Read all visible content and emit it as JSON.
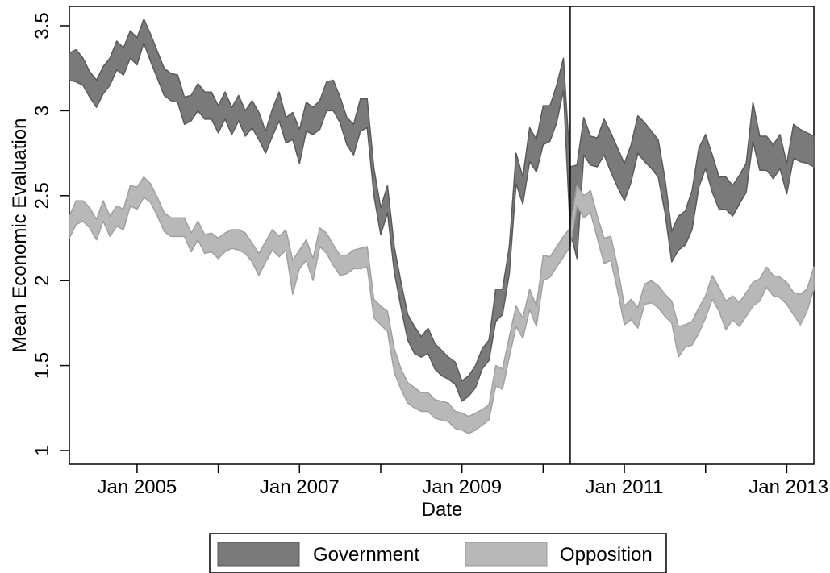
{
  "chart_data": {
    "type": "area",
    "title": "",
    "xlabel": "Date",
    "ylabel": "Mean Economic Evaluation",
    "ylim": [
      1,
      3.5
    ],
    "xlim": [
      "2004-03",
      "2013-05"
    ],
    "x_ticks": [
      "2004-01",
      "2005-01",
      "2006-01",
      "2007-01",
      "2008-01",
      "2009-01",
      "2010-01",
      "2011-01",
      "2012-01",
      "2013-01"
    ],
    "x_tick_labels": [
      "Jan 2005",
      "Jan 2007",
      "Jan 2009",
      "Jan 2011",
      "Jan 2013"
    ],
    "x_tick_label_dates": [
      "2005-01",
      "2007-01",
      "2009-01",
      "2011-01",
      "2013-01"
    ],
    "y_ticks": [
      1,
      1.5,
      2,
      2.5,
      3,
      3.5
    ],
    "y_tick_labels": [
      "1",
      "1.5",
      "2",
      "2.5",
      "3",
      "3.5"
    ],
    "grid": false,
    "vertical_line": "2010-05",
    "legend_position": "bottom",
    "series": [
      {
        "name": "Government",
        "color": "#7a7a7a",
        "x": [
          "2004-03",
          "2004-04",
          "2004-05",
          "2004-06",
          "2004-07",
          "2004-08",
          "2004-09",
          "2004-10",
          "2004-11",
          "2004-12",
          "2005-01",
          "2005-02",
          "2005-03",
          "2005-04",
          "2005-05",
          "2005-06",
          "2005-07",
          "2005-08",
          "2005-09",
          "2005-10",
          "2005-11",
          "2005-12",
          "2006-01",
          "2006-02",
          "2006-03",
          "2006-04",
          "2006-05",
          "2006-06",
          "2006-07",
          "2006-08",
          "2006-09",
          "2006-10",
          "2006-11",
          "2006-12",
          "2007-01",
          "2007-02",
          "2007-03",
          "2007-04",
          "2007-05",
          "2007-06",
          "2007-07",
          "2007-08",
          "2007-09",
          "2007-10",
          "2007-11",
          "2007-12",
          "2008-01",
          "2008-02",
          "2008-03",
          "2008-04",
          "2008-05",
          "2008-06",
          "2008-07",
          "2008-08",
          "2008-09",
          "2008-10",
          "2008-11",
          "2008-12",
          "2009-01",
          "2009-02",
          "2009-03",
          "2009-04",
          "2009-05",
          "2009-06",
          "2009-07",
          "2009-08",
          "2009-09",
          "2009-10",
          "2009-11",
          "2009-12",
          "2010-01",
          "2010-02",
          "2010-03",
          "2010-04",
          "2010-05",
          "2010-06",
          "2010-07",
          "2010-08",
          "2010-09",
          "2010-10",
          "2010-11",
          "2010-12",
          "2011-01",
          "2011-02",
          "2011-03",
          "2011-04",
          "2011-05",
          "2011-06",
          "2011-07",
          "2011-08",
          "2011-09",
          "2011-10",
          "2011-11",
          "2011-12",
          "2012-01",
          "2012-02",
          "2012-03",
          "2012-04",
          "2012-05",
          "2012-06",
          "2012-07",
          "2012-08",
          "2012-09",
          "2012-10",
          "2012-11",
          "2012-12",
          "2013-01",
          "2013-02",
          "2013-03",
          "2013-04",
          "2013-05"
        ],
        "upper": [
          3.34,
          3.36,
          3.31,
          3.23,
          3.18,
          3.26,
          3.31,
          3.41,
          3.37,
          3.47,
          3.43,
          3.54,
          3.45,
          3.35,
          3.25,
          3.22,
          3.21,
          3.08,
          3.09,
          3.16,
          3.11,
          3.11,
          3.03,
          3.11,
          3.02,
          3.09,
          3.0,
          3.06,
          2.99,
          2.88,
          3.01,
          3.11,
          2.96,
          2.99,
          2.89,
          3.05,
          3.02,
          3.06,
          3.17,
          3.18,
          3.08,
          2.96,
          2.92,
          3.07,
          3.07,
          2.66,
          2.43,
          2.56,
          2.2,
          1.99,
          1.8,
          1.73,
          1.67,
          1.72,
          1.63,
          1.59,
          1.55,
          1.52,
          1.41,
          1.44,
          1.5,
          1.6,
          1.65,
          1.95,
          1.95,
          2.2,
          2.75,
          2.61,
          2.9,
          2.83,
          3.03,
          3.03,
          3.15,
          3.31,
          2.67,
          2.68,
          2.96,
          2.85,
          2.84,
          2.95,
          2.87,
          2.78,
          2.69,
          2.8,
          2.97,
          2.93,
          2.88,
          2.83,
          2.6,
          2.29,
          2.38,
          2.41,
          2.53,
          2.78,
          2.86,
          2.74,
          2.61,
          2.61,
          2.56,
          2.62,
          2.69,
          3.05,
          2.85,
          2.85,
          2.8,
          2.86,
          2.69,
          2.92,
          2.89,
          2.87,
          2.85
        ],
        "lower": [
          3.18,
          3.17,
          3.15,
          3.08,
          3.02,
          3.1,
          3.15,
          3.24,
          3.21,
          3.31,
          3.27,
          3.4,
          3.29,
          3.19,
          3.09,
          3.06,
          3.05,
          2.92,
          2.94,
          3.0,
          2.95,
          2.95,
          2.87,
          2.95,
          2.86,
          2.94,
          2.85,
          2.9,
          2.83,
          2.75,
          2.85,
          2.94,
          2.81,
          2.83,
          2.69,
          2.88,
          2.86,
          2.89,
          3.0,
          3.0,
          2.93,
          2.8,
          2.74,
          2.88,
          2.9,
          2.5,
          2.27,
          2.4,
          2.05,
          1.84,
          1.65,
          1.57,
          1.55,
          1.57,
          1.48,
          1.44,
          1.42,
          1.39,
          1.29,
          1.32,
          1.37,
          1.48,
          1.53,
          1.76,
          1.8,
          2.04,
          2.57,
          2.45,
          2.7,
          2.64,
          2.8,
          2.82,
          2.93,
          3.12,
          2.29,
          2.13,
          2.74,
          2.68,
          2.67,
          2.74,
          2.64,
          2.55,
          2.47,
          2.58,
          2.75,
          2.7,
          2.66,
          2.61,
          2.4,
          2.11,
          2.18,
          2.21,
          2.3,
          2.55,
          2.66,
          2.52,
          2.42,
          2.42,
          2.38,
          2.45,
          2.52,
          2.82,
          2.65,
          2.65,
          2.6,
          2.66,
          2.51,
          2.72,
          2.7,
          2.69,
          2.67
        ]
      },
      {
        "name": "Opposition",
        "color": "#b8b8b8",
        "x": [
          "2004-03",
          "2004-04",
          "2004-05",
          "2004-06",
          "2004-07",
          "2004-08",
          "2004-09",
          "2004-10",
          "2004-11",
          "2004-12",
          "2005-01",
          "2005-02",
          "2005-03",
          "2005-04",
          "2005-05",
          "2005-06",
          "2005-07",
          "2005-08",
          "2005-09",
          "2005-10",
          "2005-11",
          "2005-12",
          "2006-01",
          "2006-02",
          "2006-03",
          "2006-04",
          "2006-05",
          "2006-06",
          "2006-07",
          "2006-08",
          "2006-09",
          "2006-10",
          "2006-11",
          "2006-12",
          "2007-01",
          "2007-02",
          "2007-03",
          "2007-04",
          "2007-05",
          "2007-06",
          "2007-07",
          "2007-08",
          "2007-09",
          "2007-10",
          "2007-11",
          "2007-12",
          "2008-01",
          "2008-02",
          "2008-03",
          "2008-04",
          "2008-05",
          "2008-06",
          "2008-07",
          "2008-08",
          "2008-09",
          "2008-10",
          "2008-11",
          "2008-12",
          "2009-01",
          "2009-02",
          "2009-03",
          "2009-04",
          "2009-05",
          "2009-06",
          "2009-07",
          "2009-08",
          "2009-09",
          "2009-10",
          "2009-11",
          "2009-12",
          "2010-01",
          "2010-02",
          "2010-03",
          "2010-04",
          "2010-05",
          "2010-06",
          "2010-07",
          "2010-08",
          "2010-09",
          "2010-10",
          "2010-11",
          "2010-12",
          "2011-01",
          "2011-02",
          "2011-03",
          "2011-04",
          "2011-05",
          "2011-06",
          "2011-07",
          "2011-08",
          "2011-09",
          "2011-10",
          "2011-11",
          "2011-12",
          "2012-01",
          "2012-02",
          "2012-03",
          "2012-04",
          "2012-05",
          "2012-06",
          "2012-07",
          "2012-08",
          "2012-09",
          "2012-10",
          "2012-11",
          "2012-12",
          "2013-01",
          "2013-02",
          "2013-03",
          "2013-04",
          "2013-05"
        ],
        "upper": [
          2.38,
          2.47,
          2.47,
          2.43,
          2.36,
          2.47,
          2.38,
          2.44,
          2.42,
          2.56,
          2.55,
          2.61,
          2.57,
          2.49,
          2.4,
          2.37,
          2.37,
          2.37,
          2.28,
          2.35,
          2.27,
          2.28,
          2.25,
          2.28,
          2.3,
          2.3,
          2.28,
          2.22,
          2.16,
          2.23,
          2.3,
          2.26,
          2.3,
          2.12,
          2.18,
          2.24,
          2.13,
          2.31,
          2.28,
          2.21,
          2.15,
          2.15,
          2.18,
          2.19,
          2.2,
          1.89,
          1.85,
          1.82,
          1.6,
          1.48,
          1.4,
          1.37,
          1.34,
          1.34,
          1.3,
          1.29,
          1.28,
          1.23,
          1.22,
          1.2,
          1.22,
          1.24,
          1.27,
          1.5,
          1.48,
          1.67,
          1.85,
          1.78,
          1.95,
          1.85,
          2.15,
          2.14,
          2.2,
          2.26,
          2.31,
          2.56,
          2.5,
          2.53,
          2.38,
          2.25,
          2.26,
          2.08,
          1.85,
          1.89,
          1.84,
          1.98,
          2.0,
          1.97,
          1.92,
          1.88,
          1.73,
          1.74,
          1.76,
          1.84,
          1.91,
          2.03,
          1.96,
          1.88,
          1.91,
          1.87,
          1.93,
          1.99,
          2.01,
          2.08,
          2.03,
          2.02,
          1.99,
          1.93,
          1.92,
          1.95,
          2.08
        ],
        "lower": [
          2.25,
          2.33,
          2.35,
          2.31,
          2.24,
          2.35,
          2.26,
          2.32,
          2.3,
          2.44,
          2.42,
          2.49,
          2.46,
          2.38,
          2.29,
          2.26,
          2.26,
          2.26,
          2.17,
          2.24,
          2.16,
          2.17,
          2.13,
          2.17,
          2.19,
          2.18,
          2.16,
          2.11,
          2.03,
          2.11,
          2.18,
          2.14,
          2.18,
          1.92,
          2.07,
          2.12,
          2.0,
          2.2,
          2.16,
          2.09,
          2.03,
          2.04,
          2.07,
          2.07,
          2.08,
          1.78,
          1.74,
          1.7,
          1.46,
          1.36,
          1.28,
          1.25,
          1.23,
          1.23,
          1.19,
          1.18,
          1.17,
          1.13,
          1.12,
          1.1,
          1.12,
          1.15,
          1.18,
          1.38,
          1.36,
          1.55,
          1.73,
          1.66,
          1.83,
          1.73,
          2.0,
          2.02,
          2.08,
          2.14,
          2.2,
          2.44,
          2.37,
          2.4,
          2.25,
          2.1,
          2.12,
          1.94,
          1.74,
          1.77,
          1.72,
          1.86,
          1.87,
          1.84,
          1.79,
          1.75,
          1.55,
          1.61,
          1.62,
          1.69,
          1.78,
          1.89,
          1.82,
          1.71,
          1.77,
          1.73,
          1.79,
          1.85,
          1.88,
          1.96,
          1.91,
          1.9,
          1.86,
          1.8,
          1.74,
          1.82,
          1.95
        ]
      }
    ]
  }
}
